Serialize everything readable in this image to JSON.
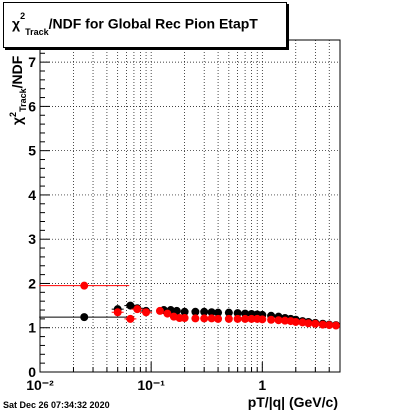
{
  "title": "χ²Track/NDF for Global Rec Pion EtapT",
  "title_parts": {
    "chi": "χ",
    "sup": "2",
    "sub": "Track",
    "rest": "/NDF for Global Rec Pion EtapT"
  },
  "timestamp": "Sat Dec 26 07:34:32 2020",
  "chart_data": {
    "type": "scatter",
    "title": "χ²Track/NDF for Global Rec Pion EtapT",
    "xlabel": "pT/|q| (GeV/c)",
    "ylabel": "χ²Track/NDF",
    "xscale": "log",
    "xlim": [
      0.01,
      5.0
    ],
    "ylim": [
      0,
      7.5
    ],
    "grid": true,
    "x_tick_labels": [
      "10⁻²",
      "10⁻¹",
      "1"
    ],
    "y_tick_labels": [
      "0",
      "1",
      "2",
      "3",
      "4",
      "5",
      "6",
      "7"
    ],
    "series": [
      {
        "color": "#000000",
        "x": [
          0.025,
          0.05,
          0.065,
          0.075,
          0.09,
          0.13,
          0.15,
          0.17,
          0.2,
          0.25,
          0.3,
          0.35,
          0.4,
          0.5,
          0.6,
          0.7,
          0.8,
          0.9,
          1.0,
          1.2,
          1.4,
          1.6,
          1.8,
          2.0,
          2.3,
          2.6,
          3.0,
          3.5,
          4.0,
          4.6
        ],
        "y": [
          1.24,
          1.42,
          1.5,
          1.44,
          1.38,
          1.4,
          1.4,
          1.38,
          1.36,
          1.36,
          1.36,
          1.35,
          1.34,
          1.34,
          1.33,
          1.32,
          1.31,
          1.3,
          1.29,
          1.27,
          1.25,
          1.22,
          1.2,
          1.18,
          1.15,
          1.13,
          1.11,
          1.09,
          1.07,
          1.06
        ]
      },
      {
        "color": "#ff0000",
        "x": [
          0.025,
          0.05,
          0.065,
          0.075,
          0.09,
          0.12,
          0.14,
          0.16,
          0.18,
          0.2,
          0.25,
          0.3,
          0.35,
          0.4,
          0.5,
          0.6,
          0.7,
          0.8,
          0.9,
          1.0,
          1.2,
          1.4,
          1.6,
          1.8,
          2.0,
          2.3,
          2.6,
          3.0,
          3.5,
          4.0,
          4.6
        ],
        "y": [
          1.95,
          1.35,
          1.2,
          1.42,
          1.35,
          1.38,
          1.32,
          1.25,
          1.22,
          1.22,
          1.21,
          1.21,
          1.21,
          1.2,
          1.2,
          1.2,
          1.2,
          1.2,
          1.2,
          1.19,
          1.18,
          1.17,
          1.16,
          1.15,
          1.13,
          1.12,
          1.1,
          1.09,
          1.07,
          1.06,
          1.05
        ]
      }
    ]
  }
}
